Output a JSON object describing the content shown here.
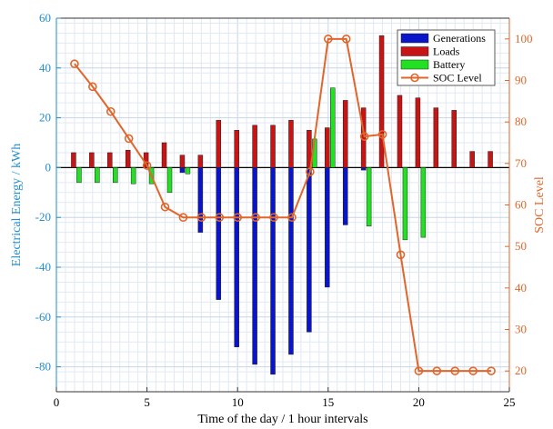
{
  "chart_data": {
    "type": "bar",
    "x": [
      1,
      2,
      3,
      4,
      5,
      6,
      7,
      8,
      9,
      10,
      11,
      12,
      13,
      14,
      15,
      16,
      17,
      18,
      19,
      20,
      21,
      22,
      23,
      24
    ],
    "xlabel": "Time of the day / 1 hour intervals",
    "ylabel": "Electrical Energy / kWh",
    "y2label": "SOC Level",
    "xlim": [
      0,
      25
    ],
    "ylim": [
      -90,
      60
    ],
    "y2lim": [
      15,
      105
    ],
    "xticks": [
      0,
      5,
      10,
      15,
      20,
      25
    ],
    "yticks": [
      -80,
      -60,
      -40,
      -20,
      0,
      20,
      40,
      60
    ],
    "y2ticks": [
      20,
      30,
      40,
      50,
      60,
      70,
      80,
      90,
      100
    ],
    "grid": true,
    "legend_position": "top-right",
    "series": [
      {
        "name": "Generations",
        "kind": "bar",
        "color": "#0a14c8",
        "values": [
          0,
          0,
          0,
          0,
          0,
          0,
          -2,
          -26,
          -53,
          -72,
          -79,
          -83,
          -75,
          -66,
          -48,
          -23,
          -1,
          0,
          0,
          0,
          0,
          0,
          0,
          0
        ]
      },
      {
        "name": "Loads",
        "kind": "bar",
        "color": "#c81414",
        "values": [
          6,
          6,
          6,
          7,
          6,
          10,
          5,
          5,
          19,
          15,
          17,
          17,
          19,
          15,
          16,
          27,
          24,
          53,
          29,
          28,
          24,
          23,
          6.5,
          6.5
        ]
      },
      {
        "name": "Battery",
        "kind": "bar",
        "color": "#22e022",
        "values": [
          -6,
          -6,
          -6,
          -6.5,
          -6.5,
          -10,
          -2.5,
          0,
          0,
          0,
          0,
          0,
          0,
          11.5,
          32,
          0,
          -23.5,
          0,
          -29,
          -28,
          0,
          0,
          0,
          0
        ]
      },
      {
        "name": "SOC Level",
        "kind": "line",
        "axis": "right",
        "color": "#e0662b",
        "values": [
          94,
          88.5,
          82.5,
          76,
          69.5,
          59.5,
          57,
          57,
          57,
          57,
          57,
          57,
          57,
          68,
          100,
          100,
          76.5,
          77,
          48,
          20,
          20,
          20,
          20,
          20
        ]
      }
    ]
  }
}
